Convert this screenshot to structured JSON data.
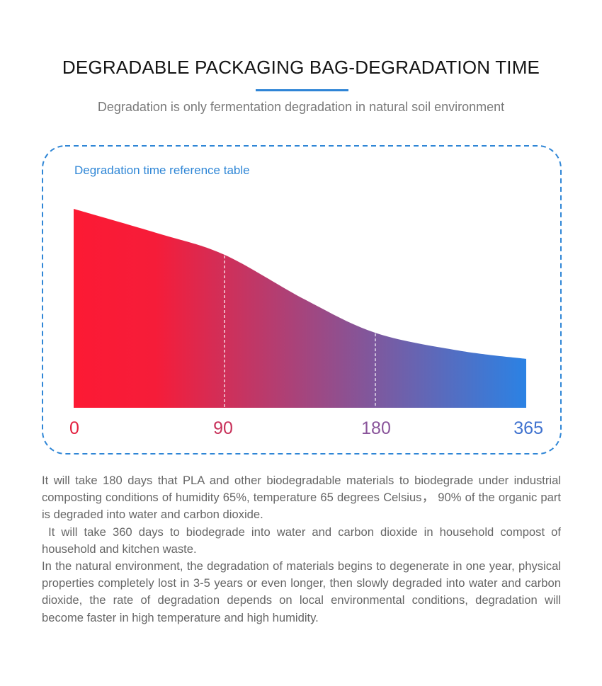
{
  "header": {
    "title": "DEGRADABLE PACKAGING BAG-DEGRADATION TIME",
    "subtitle": "Degradation is only fermentation degradation in natural soil environment",
    "accent_color": "#2e84d6"
  },
  "panel": {
    "label": "Degradation time reference table",
    "border_color": "#2f86d6"
  },
  "chart_data": {
    "type": "area",
    "title": "Degradation time reference table",
    "xlabel": "",
    "ylabel": "",
    "x_ticks": [
      {
        "value": 0,
        "label": "0",
        "color": "#e3203f"
      },
      {
        "value": 90,
        "label": "90",
        "color": "#c8315a"
      },
      {
        "value": 180,
        "label": "180",
        "color": "#8a559b"
      },
      {
        "value": 365,
        "label": "365",
        "color": "#3f72cf"
      }
    ],
    "x_unit": "days",
    "y_unit": "relative remaining (%)",
    "ylim": [
      0,
      100
    ],
    "grid": false,
    "reference_lines": [
      90,
      180
    ],
    "series": [
      {
        "name": "degradation curve",
        "x": [
          0,
          51,
          90,
          138,
          180,
          282,
          365
        ],
        "y": [
          100,
          87.5,
          76.9,
          54.4,
          37.7,
          28.8,
          24.6
        ]
      }
    ],
    "gradient": {
      "start": "#fc1a34",
      "end": "#2b82e4"
    }
  },
  "body": {
    "paragraphs": [
      "It will take 180 days that PLA and other biodegradable materials to biodegrade under industrial composting conditions of humidity 65%, temperature 65 degrees Celsius， 90% of the organic part is degraded into water and carbon dioxide.",
      " It will take 360 days to biodegrade into water and carbon dioxide in household compost of household and kitchen waste.",
      "In the natural environment, the degradation of materials begins to degenerate in one year, physical properties completely lost in 3-5 years or even longer, then slowly degraded into water and carbon dioxide, the rate of degradation depends on local environmental conditions, degradation will become faster in high temperature and high humidity."
    ]
  }
}
